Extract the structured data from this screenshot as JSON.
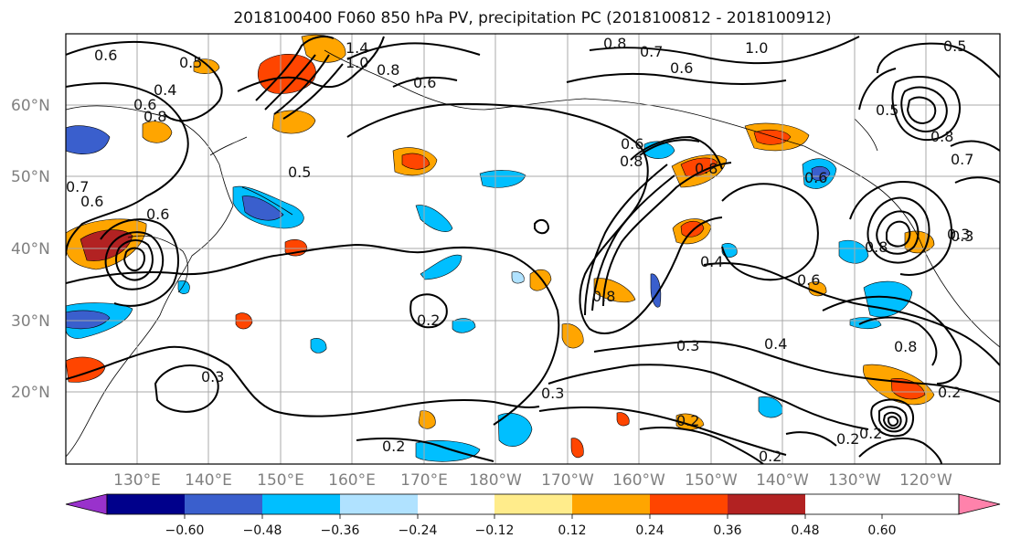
{
  "title": "2018100400 F060 850 hPa PV, precipitation PC (2018100812 - 2018100912)",
  "lat_labels": [
    "60°N",
    "50°N",
    "40°N",
    "30°N",
    "20°N"
  ],
  "lon_labels": [
    "130°E",
    "140°E",
    "150°E",
    "160°E",
    "170°E",
    "180°W",
    "170°W",
    "160°W",
    "150°W",
    "140°W",
    "130°W",
    "120°W"
  ],
  "colorbar": {
    "colors": [
      "#9932CC",
      "#00008B",
      "#3A5FCD",
      "#00BFFF",
      "#B0E2FF",
      "#FFFFFF",
      "#FFEC8B",
      "#FFA500",
      "#FF4500",
      "#B22222",
      "#FF82AB"
    ],
    "tick_labels": [
      "−0.60",
      "−0.48",
      "−0.36",
      "−0.24",
      "−0.12",
      "0.12",
      "0.24",
      "0.36",
      "0.48",
      "0.60"
    ]
  },
  "contour_labels": [
    "0.6",
    "0.5",
    "0.4",
    "1.4",
    "1.0",
    "0.8",
    "0.6",
    "0.8",
    "0.7",
    "0.6",
    "1.0",
    "0.5",
    "0.5",
    "0.8",
    "0.6",
    "0.6",
    "0.5",
    "0.8",
    "0.7",
    "0.3",
    "0.6",
    "0.6",
    "0.7",
    "0.8",
    "0.4",
    "0.8",
    "0.2",
    "0.3",
    "0.3",
    "0.3",
    "0.2",
    "0.2",
    "0.4",
    "0.3",
    "0.8",
    "0.2",
    "0.2",
    "0.2",
    "0.8",
    "0.6",
    "0.8",
    "0.6",
    "0.2"
  ]
}
